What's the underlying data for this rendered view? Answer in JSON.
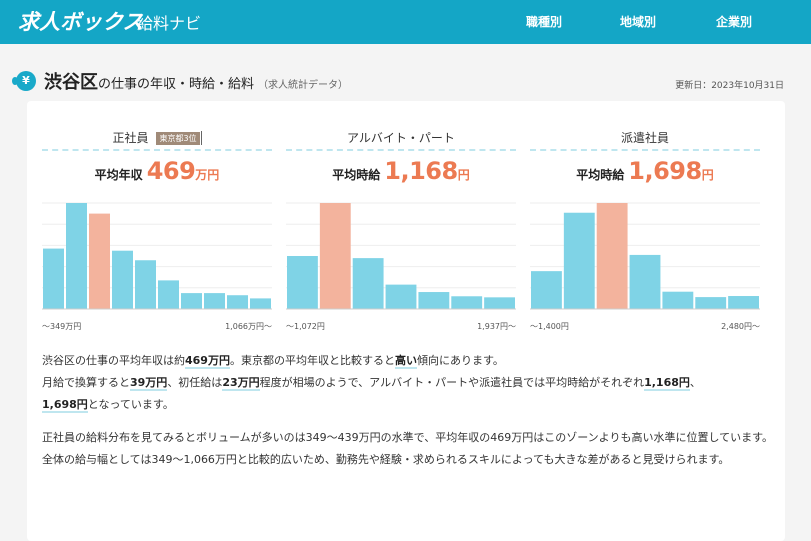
{
  "header": {
    "logo": "求人ボックス",
    "logo_sub": "給料ナビ",
    "nav": [
      "職種別",
      "地域別",
      "企業別"
    ]
  },
  "title": {
    "icon": "¥",
    "area": "渋谷区",
    "rest": "の仕事の年収・時給・給料",
    "sub": "（求人統計データ）",
    "updated": "更新日：2023年10月31日"
  },
  "colors": {
    "accent": "#14a6c6",
    "bar": "#7fd3e6",
    "bar_highlight": "#f3b39d",
    "value": "#ec7a52"
  },
  "columns": [
    {
      "label": "正社員",
      "badge": "東京都3位",
      "avg_label": "平均年収",
      "avg_value": "469",
      "avg_unit": "万円",
      "range_min": "〜349万円",
      "range_max": "1,066万円〜",
      "chart_data": {
        "type": "bar",
        "values": [
          57,
          100,
          90,
          55,
          46,
          27,
          15,
          15,
          13,
          10
        ],
        "highlight_index": 2
      }
    },
    {
      "label": "アルバイト・パート",
      "badge": "",
      "avg_label": "平均時給",
      "avg_value": "1,168",
      "avg_unit": "円",
      "range_min": "〜1,072円",
      "range_max": "1,937円〜",
      "chart_data": {
        "type": "bar",
        "values": [
          50,
          100,
          48,
          23,
          16,
          12,
          11
        ],
        "highlight_index": 1
      }
    },
    {
      "label": "派遣社員",
      "badge": "",
      "avg_label": "平均時給",
      "avg_value": "1,698",
      "avg_unit": "円",
      "range_min": "〜1,400円",
      "range_max": "2,480円〜",
      "chart_data": {
        "type": "bar",
        "values": [
          35,
          89,
          98,
          50,
          16,
          11,
          12
        ],
        "highlight_index": 2
      }
    }
  ],
  "paragraph1": {
    "s1a": "渋谷区の仕事の平均年収は約",
    "s1b": "469万円",
    "s1c": "。東京都の平均年収と比較すると",
    "s1d": "高い",
    "s1e": "傾向にあります。",
    "s2a": "月給で換算すると",
    "s2b": "39万円",
    "s2c": "、初任給は",
    "s2d": "23万円",
    "s2e": "程度が相場のようで、アルバイト・パートや派遣社員では平均時給がそれぞれ",
    "s2f": "1,168円",
    "s2g": "、",
    "s2h": "1,698円",
    "s2i": "となっています。"
  },
  "paragraph2": {
    "text1": "正社員の給料分布を見てみるとボリュームが多いのは349〜439万円の水準で、平均年収の469万円はこのゾーンよりも高い水準に位置しています。",
    "text2": "全体の給与幅としては349〜1,066万円と比較的広いため、勤務先や経験・求められるスキルによっても大きな差があると見受けられます。"
  }
}
